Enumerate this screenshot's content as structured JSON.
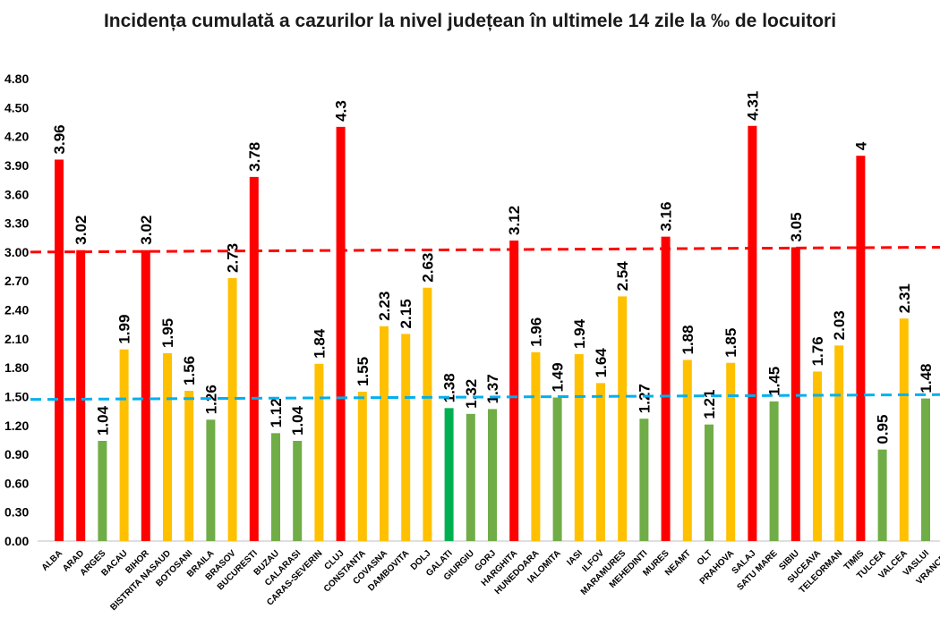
{
  "chart_data": {
    "type": "bar",
    "title": "Incidența cumulată a cazurilor la nivel județean în ultimele 14 zile la ‰ de locuitori",
    "xlabel": "",
    "ylabel": "",
    "ylim": [
      0,
      4.8
    ],
    "yticks": [
      "0.00",
      "0.30",
      "0.60",
      "0.90",
      "1.20",
      "1.50",
      "1.80",
      "2.10",
      "2.40",
      "2.70",
      "3.00",
      "3.30",
      "3.60",
      "3.90",
      "4.20",
      "4.50",
      "4.80"
    ],
    "grid": false,
    "legend": "none",
    "categories": [
      "ALBA",
      "ARAD",
      "ARGES",
      "BACAU",
      "BIHOR",
      "BISTRITA NASAUD",
      "BOTOSANI",
      "BRAILA",
      "BRASOV",
      "BUCURESTI",
      "BUZAU",
      "CALARASI",
      "CARAS-SEVERIN",
      "CLUJ",
      "CONSTANTA",
      "COVASNA",
      "DAMBOVITA",
      "DOLJ",
      "GALATI",
      "GIURGIU",
      "GORJ",
      "HARGHITA",
      "HUNEDOARA",
      "IALOMITA",
      "IASI",
      "ILFOV",
      "MARAMURES",
      "MEHEDINTI",
      "MURES",
      "NEAMT",
      "OLT",
      "PRAHOVA",
      "SALAJ",
      "SATU MARE",
      "SIBIU",
      "SUCEAVA",
      "TELEORMAN",
      "TIMIS",
      "TULCEA",
      "VALCEA",
      "VASLUI",
      "VRANCEA"
    ],
    "values": [
      3.96,
      3.02,
      1.04,
      1.99,
      3.02,
      1.95,
      1.56,
      1.26,
      2.73,
      3.78,
      1.12,
      1.04,
      1.84,
      4.3,
      1.55,
      2.23,
      2.15,
      2.63,
      1.38,
      1.32,
      1.37,
      3.12,
      1.96,
      1.49,
      1.94,
      1.64,
      2.54,
      1.27,
      3.16,
      1.88,
      1.21,
      1.85,
      4.31,
      1.45,
      3.05,
      1.76,
      2.03,
      4,
      0.95,
      2.31,
      1.48,
      null
    ],
    "value_labels": [
      "3.96",
      "3.02",
      "1.04",
      "1.99",
      "3.02",
      "1.95",
      "1.56",
      "1.26",
      "2.73",
      "3.78",
      "1.12",
      "1.04",
      "1.84",
      "4.3",
      "1.55",
      "2.23",
      "2.15",
      "2.63",
      "1.38",
      "1.32",
      "1.37",
      "3.12",
      "1.96",
      "1.49",
      "1.94",
      "1.64",
      "2.54",
      "1.27",
      "3.16",
      "1.88",
      "1.21",
      "1.85",
      "4.31",
      "1.45",
      "3.05",
      "1.76",
      "2.03",
      "4",
      "0.95",
      "2.31",
      "1.48",
      ""
    ],
    "bar_colors": [
      "#ff0000",
      "#ff0000",
      "#70ad47",
      "#ffc000",
      "#ff0000",
      "#ffc000",
      "#ffc000",
      "#70ad47",
      "#ffc000",
      "#ff0000",
      "#70ad47",
      "#70ad47",
      "#ffc000",
      "#ff0000",
      "#ffc000",
      "#ffc000",
      "#ffc000",
      "#ffc000",
      "#00b050",
      "#70ad47",
      "#70ad47",
      "#ff0000",
      "#ffc000",
      "#70ad47",
      "#ffc000",
      "#ffc000",
      "#ffc000",
      "#70ad47",
      "#ff0000",
      "#ffc000",
      "#70ad47",
      "#ffc000",
      "#ff0000",
      "#70ad47",
      "#ff0000",
      "#ffc000",
      "#ffc000",
      "#ff0000",
      "#70ad47",
      "#ffc000",
      "#70ad47",
      "#70ad47"
    ],
    "reference_lines": [
      {
        "color": "#ff0000",
        "y_start": 3.0,
        "y_end": 3.05
      },
      {
        "color": "#00b0f0",
        "y_start": 1.47,
        "y_end": 1.52
      }
    ]
  }
}
